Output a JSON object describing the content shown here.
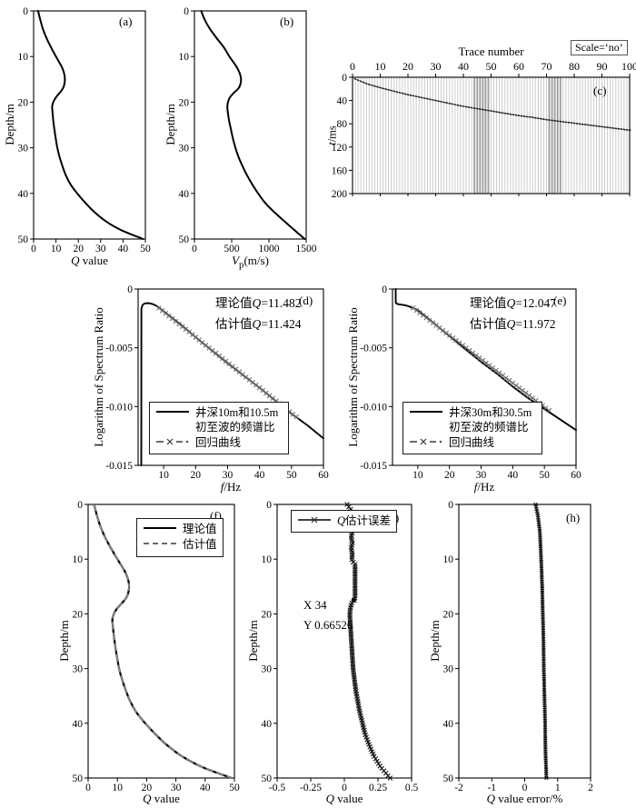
{
  "chart_data": [
    {
      "id": "a",
      "type": "line",
      "panel_label": "(a)",
      "xlabel": {
        "italic": "Q",
        "rest": " value"
      },
      "ylabel": "Depth/m",
      "xlim": [
        0,
        50
      ],
      "ylim": [
        0,
        50
      ],
      "y_down": true,
      "xticks": [
        0,
        10,
        20,
        30,
        40,
        50
      ],
      "yticks": [
        0,
        10,
        20,
        30,
        40,
        50
      ],
      "series": [
        {
          "name": "Q model",
          "color": "#000000",
          "width": 2,
          "smooth": true,
          "x": [
            2,
            3,
            4.2,
            5.8,
            7.8,
            10,
            12.3,
            13.2,
            13.8,
            14,
            13.8,
            13.1,
            11.6,
            9.9,
            8.8,
            8.3,
            8.4,
            8.8,
            9.3,
            9.9,
            10.6,
            11.6,
            12.9,
            14.4,
            16.5,
            19.5,
            23,
            27,
            32,
            39,
            49
          ],
          "y": [
            0,
            2,
            4,
            6,
            8,
            10,
            12,
            13,
            14,
            15,
            16,
            17,
            18,
            19,
            20,
            21,
            22,
            24,
            26,
            28,
            30,
            32,
            34,
            36,
            38,
            40,
            42,
            44,
            46,
            48,
            50
          ]
        }
      ]
    },
    {
      "id": "b",
      "type": "line",
      "panel_label": "(b)",
      "xlabel": {
        "italic": "V",
        "sub": "p",
        "rest": "(m/s)"
      },
      "ylabel": "Depth/m",
      "xlim": [
        0,
        1500
      ],
      "ylim": [
        0,
        50
      ],
      "y_down": true,
      "xticks": [
        0,
        500,
        1000,
        1500
      ],
      "yticks": [
        0,
        10,
        20,
        30,
        40,
        50
      ],
      "series": [
        {
          "name": "Vp model",
          "color": "#000000",
          "width": 2,
          "smooth": true,
          "x": [
            90,
            140,
            210,
            300,
            395,
            470,
            555,
            590,
            615,
            625,
            618,
            590,
            525,
            475,
            450,
            442,
            446,
            465,
            490,
            517,
            550,
            592,
            645,
            705,
            775,
            855,
            945,
            1065,
            1200,
            1340,
            1480
          ],
          "y": [
            0,
            2,
            4,
            6,
            8,
            10,
            12,
            13,
            14,
            15,
            16,
            17,
            18,
            19,
            20,
            21,
            22,
            24,
            26,
            28,
            30,
            32,
            34,
            36,
            38,
            40,
            42,
            44,
            46,
            48,
            50
          ]
        }
      ]
    },
    {
      "id": "c",
      "type": "line",
      "display": "seismic-wiggle-section",
      "panel_label": "(c)",
      "title": "Trace number",
      "scale_label": "Scale=‘no’",
      "xlabel_top": true,
      "ylabel": {
        "italic": "t",
        "rest": "/ms"
      },
      "xlim": [
        0,
        100
      ],
      "ylim": [
        0,
        200
      ],
      "y_down": true,
      "x_top": true,
      "xticks": [
        0,
        10,
        20,
        30,
        40,
        50,
        60,
        70,
        80,
        90,
        100
      ],
      "yticks": [
        0,
        40,
        80,
        120,
        160,
        200
      ],
      "traces": {
        "count": 100,
        "color": "#c6c6c6",
        "band_color": "#9b9b9b",
        "dark_bands": [
          [
            44,
            49
          ],
          [
            71,
            75
          ]
        ],
        "event": {
          "x": [
            0,
            5,
            10,
            15,
            20,
            25,
            30,
            35,
            40,
            45,
            50,
            55,
            60,
            65,
            70,
            75,
            80,
            85,
            90,
            95,
            100
          ],
          "t": [
            1,
            11,
            18,
            24,
            30,
            35,
            40,
            45,
            50,
            54,
            58,
            62,
            66,
            69,
            73,
            76,
            79,
            82,
            85,
            88,
            91
          ]
        }
      },
      "series": []
    },
    {
      "id": "d",
      "type": "line",
      "panel_label": "(d)",
      "xlabel": {
        "italic": "f",
        "rest": "/Hz"
      },
      "ylabel": "Logarithm of Spectrum Ratio",
      "xlim": [
        2,
        60
      ],
      "ylim": [
        -0.015,
        0
      ],
      "y_down": false,
      "xticks": [
        10,
        20,
        30,
        40,
        50,
        60
      ],
      "yticks": [
        0,
        -0.005,
        -0.01,
        -0.015
      ],
      "ytick_labels": [
        "0",
        "-0.005",
        "-0.010",
        "-0.015"
      ],
      "annotations": [
        {
          "pre": "理论值",
          "q": "Q",
          "rest": "=11.482"
        },
        {
          "pre": "估计值",
          "q": "Q",
          "rest": "=11.424"
        }
      ],
      "legend": {
        "entries": [
          {
            "style": "solid",
            "label": "井深10m和10.5m",
            "label2": "初至波的频谱比"
          },
          {
            "style": "dashdot-x",
            "label": "回归曲线"
          }
        ]
      },
      "series": [
        {
          "name": "spectrum ratio",
          "color": "#000000",
          "width": 1.9,
          "x": [
            3,
            3.02,
            3.3,
            3.7,
            4.2,
            5,
            6,
            7,
            8,
            10,
            15,
            20,
            25,
            30,
            35,
            40,
            45,
            50,
            55,
            60
          ],
          "y": [
            -0.015,
            -0.0017,
            -0.0014,
            -0.00128,
            -0.00122,
            -0.0012,
            -0.00124,
            -0.00133,
            -0.00148,
            -0.0019,
            -0.00295,
            -0.0041,
            -0.0052,
            -0.0063,
            -0.00735,
            -0.0084,
            -0.0095,
            -0.0106,
            -0.0116,
            -0.0127
          ]
        },
        {
          "name": "regression",
          "color": "#6e6e6e",
          "width": 1.4,
          "dash": "8,3,2,3",
          "marker": "x",
          "marker_count": 42,
          "marker_size": 2.4,
          "x": [
            8.5,
            51.5
          ],
          "y": [
            -0.00162,
            -0.01088
          ]
        }
      ]
    },
    {
      "id": "e",
      "type": "line",
      "panel_label": "(e)",
      "xlabel": {
        "italic": "f",
        "rest": "/Hz"
      },
      "ylabel": "Logarithm of Spectrum Ratio",
      "xlim": [
        2,
        60
      ],
      "ylim": [
        -0.015,
        0
      ],
      "y_down": false,
      "xticks": [
        10,
        20,
        30,
        40,
        50,
        60
      ],
      "yticks": [
        0,
        -0.005,
        -0.01,
        -0.015
      ],
      "ytick_labels": [
        "0",
        "-0.005",
        "-0.010",
        "-0.015"
      ],
      "annotations": [
        {
          "pre": "理论值",
          "q": "Q",
          "rest": "=12.047"
        },
        {
          "pre": "估计值",
          "q": "Q",
          "rest": "=11.972"
        }
      ],
      "legend": {
        "entries": [
          {
            "style": "solid",
            "label": "井深30m和30.5m",
            "label2": "初至波的频谱比"
          },
          {
            "style": "dashdot-x",
            "label": "回归曲线"
          }
        ]
      },
      "series": [
        {
          "name": "spectrum ratio",
          "color": "#000000",
          "width": 1.9,
          "x": [
            3,
            3.02,
            3.5,
            4,
            5,
            6,
            7,
            8,
            10,
            15,
            20,
            25,
            30,
            35,
            40,
            45,
            50,
            55,
            60
          ],
          "y": [
            0,
            -0.00118,
            -0.00126,
            -0.0013,
            -0.00134,
            -0.00138,
            -0.00146,
            -0.00156,
            -0.0018,
            -0.0029,
            -0.004,
            -0.0051,
            -0.0062,
            -0.0072,
            -0.0083,
            -0.0093,
            -0.0102,
            -0.0111,
            -0.012
          ]
        },
        {
          "name": "regression",
          "color": "#6e6e6e",
          "width": 1.4,
          "dash": "8,3,2,3",
          "marker": "x",
          "marker_count": 42,
          "marker_size": 2.4,
          "x": [
            8.5,
            51.5
          ],
          "y": [
            -0.0016,
            -0.01034
          ]
        }
      ]
    },
    {
      "id": "f",
      "type": "line",
      "panel_label": "(f)",
      "xlabel": {
        "italic": "Q",
        "rest": " value"
      },
      "ylabel": "Depth/m",
      "xlim": [
        0,
        50
      ],
      "ylim": [
        0,
        50
      ],
      "y_down": true,
      "xticks": [
        0,
        10,
        20,
        30,
        40,
        50
      ],
      "yticks": [
        0,
        10,
        20,
        30,
        40,
        50
      ],
      "legend": {
        "entries": [
          {
            "style": "solid",
            "label": "理论值"
          },
          {
            "style": "dash",
            "label": "估计值"
          }
        ]
      },
      "series": [
        {
          "name": "theoretical",
          "color": "#000000",
          "width": 2.2,
          "smooth": true,
          "x": [
            2,
            3,
            4.2,
            5.8,
            7.8,
            10,
            12.3,
            13.2,
            13.8,
            14,
            13.8,
            13.1,
            11.6,
            9.9,
            8.8,
            8.3,
            8.4,
            8.8,
            9.3,
            9.9,
            10.6,
            11.6,
            12.9,
            14.4,
            16.5,
            19.5,
            23,
            27,
            32,
            39,
            49
          ],
          "y": [
            0,
            2,
            4,
            6,
            8,
            10,
            12,
            13,
            14,
            15,
            16,
            17,
            18,
            19,
            20,
            21,
            22,
            24,
            26,
            28,
            30,
            32,
            34,
            36,
            38,
            40,
            42,
            44,
            46,
            48,
            50
          ]
        },
        {
          "name": "estimated",
          "color": "#8a8a8a",
          "width": 1.7,
          "dash": "7,5",
          "smooth": true,
          "x": [
            2,
            3,
            4.2,
            5.8,
            7.8,
            10,
            12.3,
            13.2,
            13.8,
            14,
            13.8,
            13.1,
            11.6,
            9.9,
            8.8,
            8.3,
            8.4,
            8.8,
            9.3,
            9.9,
            10.6,
            11.6,
            12.9,
            14.4,
            16.5,
            19.5,
            23,
            27,
            32,
            39,
            49
          ],
          "y": [
            0,
            2,
            4,
            6,
            8,
            10,
            12,
            13,
            14,
            15,
            16,
            17,
            18,
            19,
            20,
            21,
            22,
            24,
            26,
            28,
            30,
            32,
            34,
            36,
            38,
            40,
            42,
            44,
            46,
            48,
            50
          ]
        }
      ]
    },
    {
      "id": "g",
      "type": "line",
      "panel_label": "(g)",
      "xlabel": {
        "italic": "Q",
        "rest": " value"
      },
      "ylabel": "Depth/m",
      "xlim": [
        -0.5,
        0.5
      ],
      "ylim": [
        0,
        50
      ],
      "y_down": true,
      "xticks": [
        -0.5,
        -0.25,
        0,
        0.25,
        0.5
      ],
      "xtick_labels": [
        "-0.5",
        "-0.25",
        "0",
        "0.25",
        "0.5"
      ],
      "yticks": [
        0,
        10,
        20,
        30,
        40,
        50
      ],
      "annotations": [
        "X 34",
        "Y 0.66526"
      ],
      "legend": {
        "entries": [
          {
            "style": "solid-x",
            "italic": "Q",
            "label": "估计误差"
          }
        ]
      },
      "series": [
        {
          "name": "Q estimation error",
          "color": "#1a1a1a",
          "width": 1,
          "marker": "x",
          "marker_count": 115,
          "marker_size": 2.4,
          "x": [
            0.02,
            0.05,
            0.03,
            0.02,
            0.04,
            0.06,
            0.05,
            0.06,
            0.05,
            0.06,
            0.055,
            0.06,
            0.08,
            0.08,
            0.08,
            0.08,
            0.08,
            0.075,
            0.055,
            0.045,
            0.04,
            0.045,
            0.05,
            0.055,
            0.06,
            0.065,
            0.075,
            0.085,
            0.1,
            0.115,
            0.135,
            0.155,
            0.185,
            0.22,
            0.27,
            0.34
          ],
          "y": [
            0,
            1,
            2,
            3,
            4,
            5,
            6,
            7,
            8,
            9,
            10,
            10.4,
            10.8,
            12,
            14,
            16,
            17,
            17.5,
            18,
            19,
            20,
            22,
            24,
            26,
            28,
            30,
            32,
            34,
            36,
            38,
            40,
            42,
            44,
            46,
            48,
            50
          ]
        },
        {
          "name": "datatip point",
          "color": "#111111",
          "line": false,
          "marker": "dot",
          "marker_count": 1,
          "marker_size": 2.6,
          "x": [
            0.07
          ],
          "y": [
            17.5
          ]
        }
      ]
    },
    {
      "id": "h",
      "type": "line",
      "panel_label": "(h)",
      "xlabel": {
        "italic": "Q",
        "rest": " value error/%"
      },
      "ylabel": "Depth/m",
      "xlim": [
        -2,
        2
      ],
      "ylim": [
        0,
        50
      ],
      "y_down": true,
      "xticks": [
        -2,
        -1,
        0,
        1,
        2
      ],
      "yticks": [
        0,
        10,
        20,
        30,
        40,
        50
      ],
      "series": [
        {
          "name": "Q value error %",
          "color": "#1a1a1a",
          "width": 1,
          "marker": "x",
          "marker_count": 125,
          "marker_size": 1.9,
          "x": [
            0.33,
            0.4,
            0.46,
            0.5,
            0.53,
            0.55,
            0.57,
            0.58,
            0.6,
            0.62,
            0.63,
            0.66
          ],
          "y": [
            0,
            2,
            5,
            10,
            15,
            20,
            25,
            30,
            35,
            40,
            45,
            50
          ]
        }
      ]
    }
  ]
}
